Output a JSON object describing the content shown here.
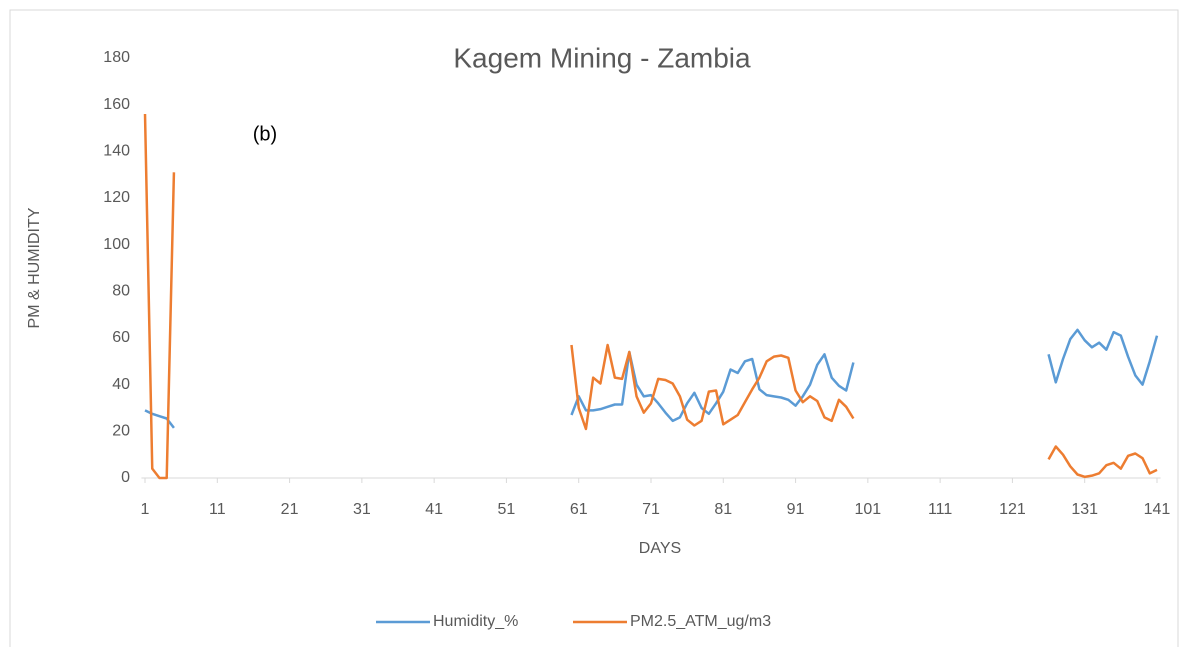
{
  "chart_data": {
    "type": "line",
    "title": "Kagem Mining - Zambia",
    "annotation": "(b)",
    "x_label": "DAYS",
    "y_label": "PM & HUMIDITY",
    "x": [
      1,
      2,
      3,
      4,
      5,
      6,
      7,
      8,
      9,
      10,
      11,
      12,
      13,
      14,
      15,
      16,
      17,
      18,
      19,
      20,
      21,
      22,
      23,
      24,
      25,
      26,
      27,
      28,
      29,
      30,
      31,
      32,
      33,
      34,
      35,
      36,
      37,
      38,
      39,
      40,
      41,
      42,
      43,
      44,
      45,
      46,
      47,
      48,
      49,
      50,
      51,
      52,
      53,
      54,
      55,
      56,
      57,
      58,
      59,
      60,
      61,
      62,
      63,
      64,
      65,
      66,
      67,
      68,
      69,
      70,
      71,
      72,
      73,
      74,
      75,
      76,
      77,
      78,
      79,
      80,
      81,
      82,
      83,
      84,
      85,
      86,
      87,
      88,
      89,
      90,
      91,
      92,
      93,
      94,
      95,
      96,
      97,
      98,
      99,
      100,
      101,
      102,
      103,
      104,
      105,
      106,
      107,
      108,
      109,
      110,
      111,
      112,
      113,
      114,
      115,
      116,
      117,
      118,
      119,
      120,
      121,
      122,
      123,
      124,
      125,
      126,
      127,
      128,
      129,
      130,
      131,
      132,
      133,
      134,
      135,
      136,
      137,
      138,
      139,
      140,
      141
    ],
    "series": [
      {
        "name": "Humidity_%",
        "color": "#5b9bd5",
        "values": [
          29,
          27.5,
          26.5,
          25.5,
          21.5,
          null,
          null,
          null,
          null,
          null,
          null,
          null,
          null,
          null,
          null,
          null,
          null,
          null,
          null,
          null,
          null,
          null,
          null,
          null,
          null,
          null,
          null,
          null,
          null,
          null,
          null,
          null,
          null,
          null,
          null,
          null,
          null,
          null,
          null,
          null,
          null,
          null,
          null,
          null,
          null,
          null,
          null,
          null,
          null,
          null,
          null,
          null,
          null,
          null,
          null,
          null,
          null,
          null,
          null,
          27,
          35,
          29,
          29,
          29.5,
          30.5,
          31.5,
          31.5,
          54,
          40,
          35,
          35.5,
          32,
          28,
          24.5,
          26,
          32,
          36.5,
          30,
          27.5,
          32,
          37,
          46.5,
          45,
          50,
          51,
          38,
          35.5,
          35,
          34.5,
          33.5,
          31,
          35,
          40,
          48.5,
          53,
          43,
          39.5,
          37.5,
          49.5,
          null,
          null,
          null,
          null,
          null,
          null,
          null,
          null,
          null,
          null,
          null,
          null,
          null,
          null,
          null,
          null,
          null,
          null,
          null,
          null,
          null,
          null,
          null,
          null,
          null,
          null,
          53,
          41,
          51,
          59.5,
          63.5,
          59,
          56,
          58,
          55,
          62.5,
          61,
          52,
          44,
          40,
          50,
          61
        ]
      },
      {
        "name": "PM2.5_ATM_ug/m3",
        "color": "#ed7d31",
        "values": [
          156,
          4,
          0,
          0,
          131,
          null,
          null,
          null,
          null,
          null,
          null,
          null,
          null,
          null,
          null,
          null,
          null,
          null,
          null,
          null,
          null,
          null,
          null,
          null,
          null,
          null,
          null,
          null,
          null,
          null,
          null,
          null,
          null,
          null,
          null,
          null,
          null,
          null,
          null,
          null,
          null,
          null,
          null,
          null,
          null,
          null,
          null,
          null,
          null,
          null,
          null,
          null,
          null,
          null,
          null,
          null,
          null,
          null,
          null,
          57,
          30,
          21,
          43,
          40.5,
          57,
          43,
          42.5,
          54,
          35,
          28,
          32,
          42.5,
          42,
          40.5,
          35,
          25,
          22.5,
          24.5,
          37,
          37.5,
          23,
          25,
          27,
          32.5,
          38,
          43,
          50,
          52,
          52.5,
          51.5,
          37.5,
          32.5,
          35,
          33,
          26,
          24.5,
          33.5,
          30.5,
          25.5,
          null,
          null,
          null,
          null,
          null,
          null,
          null,
          null,
          null,
          null,
          null,
          null,
          null,
          null,
          null,
          null,
          null,
          null,
          null,
          null,
          null,
          null,
          null,
          null,
          null,
          null,
          8,
          13.5,
          10,
          5,
          1.5,
          0.5,
          1,
          2,
          5.5,
          6.5,
          4,
          9.5,
          10.5,
          8.5,
          2,
          3.5
        ]
      }
    ],
    "xlim": [
      0.5,
      141.5
    ],
    "xticks": [
      1,
      11,
      21,
      31,
      41,
      51,
      61,
      71,
      81,
      91,
      101,
      111,
      121,
      131,
      141
    ],
    "ylim": [
      0,
      180
    ],
    "yticks": [
      0,
      20,
      40,
      60,
      80,
      100,
      120,
      140,
      160,
      180
    ],
    "grid": false,
    "legend": "bottom"
  }
}
